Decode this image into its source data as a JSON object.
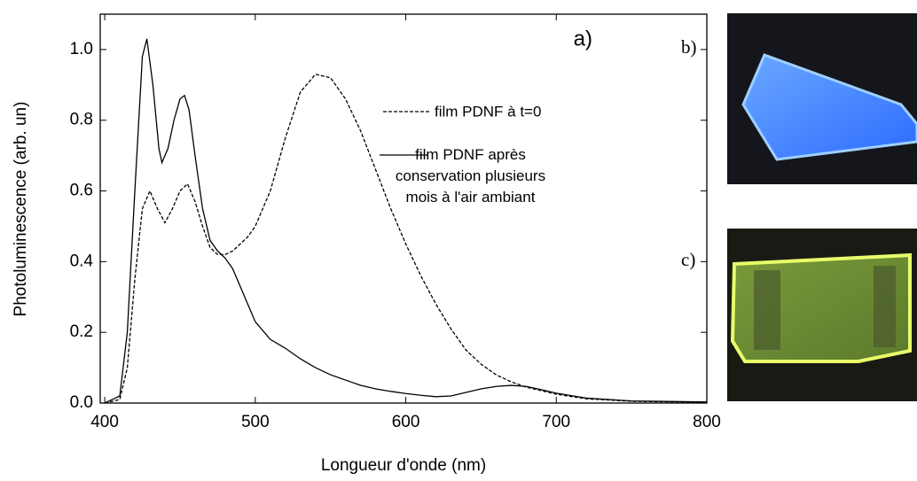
{
  "chart_data": {
    "type": "line",
    "panel_label": "a)",
    "x_label": "Longueur d'onde (nm)",
    "y_label": "Photoluminescence (arb. un)",
    "xlim": [
      397,
      800
    ],
    "xticks": [
      400,
      500,
      600,
      700,
      800
    ],
    "ylim": [
      0,
      1.1
    ],
    "yticks": [
      {
        "value": 0,
        "label": "0.0"
      },
      0.2,
      0.4,
      0.6,
      0.8,
      {
        "value": 1,
        "label": "1.0"
      }
    ],
    "series": [
      {
        "name": "film PDNF à t=0",
        "color": "#000000",
        "line_style": "dashed",
        "x": [
          400,
          410,
          415,
          420,
          425,
          430,
          435,
          440,
          445,
          450,
          455,
          460,
          465,
          470,
          475,
          480,
          485,
          490,
          495,
          500,
          510,
          520,
          530,
          540,
          550,
          560,
          570,
          580,
          590,
          600,
          610,
          620,
          630,
          640,
          650,
          660,
          670,
          680,
          700,
          720,
          750,
          800
        ],
        "values": [
          0,
          0.01,
          0.1,
          0.35,
          0.55,
          0.6,
          0.55,
          0.51,
          0.55,
          0.6,
          0.62,
          0.57,
          0.5,
          0.44,
          0.42,
          0.42,
          0.43,
          0.45,
          0.47,
          0.5,
          0.6,
          0.75,
          0.88,
          0.93,
          0.92,
          0.86,
          0.77,
          0.66,
          0.55,
          0.45,
          0.36,
          0.28,
          0.21,
          0.15,
          0.11,
          0.08,
          0.06,
          0.045,
          0.025,
          0.012,
          0.005,
          0.002
        ]
      },
      {
        "name": "film PDNF après conservation plusieurs mois à l'air ambiant",
        "color": "#000000",
        "line_style": "solid",
        "x": [
          400,
          410,
          415,
          420,
          425,
          428,
          432,
          436,
          438,
          442,
          446,
          450,
          453,
          456,
          460,
          465,
          470,
          475,
          480,
          485,
          490,
          495,
          500,
          510,
          520,
          530,
          540,
          550,
          560,
          570,
          580,
          590,
          600,
          610,
          620,
          630,
          640,
          650,
          660,
          670,
          680,
          690,
          700,
          720,
          750,
          800
        ],
        "values": [
          0,
          0.02,
          0.2,
          0.6,
          0.98,
          1.03,
          0.9,
          0.72,
          0.68,
          0.72,
          0.8,
          0.86,
          0.87,
          0.83,
          0.7,
          0.55,
          0.46,
          0.43,
          0.41,
          0.38,
          0.33,
          0.28,
          0.23,
          0.18,
          0.155,
          0.125,
          0.1,
          0.08,
          0.065,
          0.05,
          0.04,
          0.033,
          0.027,
          0.022,
          0.018,
          0.02,
          0.03,
          0.04,
          0.047,
          0.05,
          0.047,
          0.038,
          0.028,
          0.014,
          0.006,
          0.003
        ]
      }
    ]
  },
  "photos": {
    "b_label": "b)",
    "c_label": "c)"
  }
}
